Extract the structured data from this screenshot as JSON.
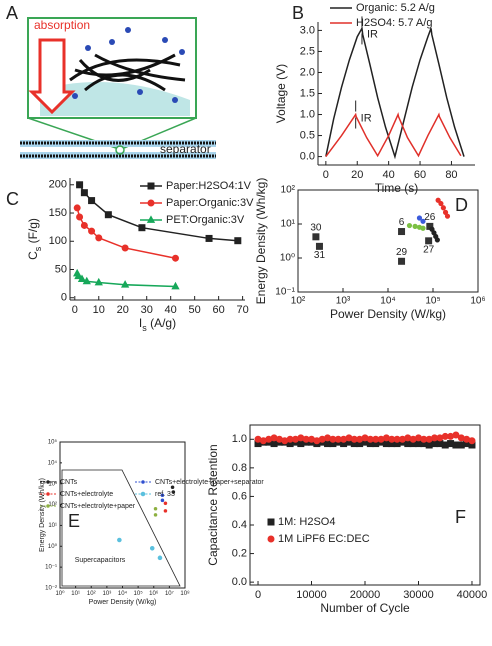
{
  "diagram": {
    "panel": "A",
    "labels": [
      "absorption",
      "separator"
    ]
  },
  "chart_data": [
    {
      "type": "line",
      "panel": "B",
      "xlabel": "Time (s)",
      "ylabel": "Voltage (V)",
      "xlim": [
        -5,
        95
      ],
      "ylim": [
        -0.2,
        3.2
      ],
      "xticks": [
        0,
        20,
        40,
        60,
        80
      ],
      "yticks": [
        {
          "value": 0,
          "label": "0.0"
        },
        0.5,
        {
          "value": 1,
          "label": "1.0"
        },
        1.5,
        {
          "value": 2,
          "label": "2.0"
        },
        2.5,
        {
          "value": 3,
          "label": "3.0"
        }
      ],
      "annotations": [
        {
          "text": "IR",
          "x": 23,
          "y": 3.0
        },
        {
          "text": "IR",
          "x": 19,
          "y": 1.0
        }
      ],
      "series": [
        {
          "name": "Organic: 5.2 A/g",
          "color": "#222222",
          "x": [
            0,
            5,
            10,
            15,
            20,
            23,
            23.5,
            28,
            33,
            38,
            44,
            50,
            55,
            60,
            65,
            67,
            67.5,
            72,
            77,
            82,
            88
          ],
          "values": [
            0,
            0.9,
            1.65,
            2.3,
            2.85,
            3.05,
            2.9,
            2.2,
            1.4,
            0.7,
            0,
            0.9,
            1.65,
            2.3,
            2.85,
            3.05,
            2.9,
            2.2,
            1.4,
            0.7,
            0
          ]
        },
        {
          "name": "H2SO4: 5.7 A/g",
          "color": "#e0302a",
          "x": [
            0,
            10,
            19,
            19.3,
            26,
            33,
            40,
            46,
            46.3,
            52,
            59,
            65,
            72,
            72.3,
            79,
            86
          ],
          "values": [
            0,
            0.5,
            1.0,
            0.95,
            0.45,
            0.02,
            0.5,
            1.0,
            0.95,
            0.45,
            0.02,
            0.5,
            1.0,
            0.95,
            0.45,
            0.02
          ]
        }
      ]
    },
    {
      "type": "line",
      "panel": "C",
      "xlabel": [
        "I",
        "s",
        " (A/g)"
      ],
      "ylabel": [
        "C",
        "s",
        " (F/g)"
      ],
      "xlim": [
        -2,
        71
      ],
      "ylim": [
        -4,
        212
      ],
      "xticks": [
        0,
        10,
        20,
        30,
        40,
        50,
        60,
        70
      ],
      "yticks": [
        0,
        50,
        100,
        150,
        200
      ],
      "series": [
        {
          "name": "Paper:H2SO4:1V",
          "color": "#222222",
          "marker": "square",
          "x": [
            2,
            4,
            7,
            14,
            28,
            56,
            68
          ],
          "values": [
            200,
            186,
            172,
            147,
            124,
            105,
            101
          ]
        },
        {
          "name": "Paper:Organic:3V",
          "color": "#e8312a",
          "marker": "circle",
          "x": [
            1,
            2,
            4,
            7,
            10,
            21,
            42
          ],
          "values": [
            159,
            143,
            128,
            118,
            106,
            88,
            70
          ]
        },
        {
          "name": "PET:Organic:3V",
          "color": "#17a85a",
          "marker": "triangle",
          "x": [
            1,
            1.5,
            3,
            5,
            10,
            21,
            42
          ],
          "values": [
            43,
            38,
            33,
            29,
            27,
            23,
            20
          ]
        }
      ]
    },
    {
      "type": "scatter",
      "panel": "D",
      "xlabel": "Power Density (W/kg)",
      "ylabel": "Energy Density (Wh/kg)",
      "xlog": true,
      "ylog": true,
      "xlim": [
        100,
        1000000
      ],
      "ylim": [
        0.1,
        100
      ],
      "xticks": [
        {
          "value": 100,
          "label": "10²"
        },
        {
          "value": 1000,
          "label": "10³"
        },
        {
          "value": 10000,
          "label": "10⁴"
        },
        {
          "value": 100000,
          "label": "10⁵"
        },
        {
          "value": 1000000,
          "label": "10⁶"
        }
      ],
      "yticks": [
        {
          "value": 0.1,
          "label": "10⁻¹"
        },
        {
          "value": 1,
          "label": "10⁰"
        },
        {
          "value": 10,
          "label": "10¹"
        },
        {
          "value": 100,
          "label": "10²"
        }
      ],
      "series": [
        {
          "color": "#333333",
          "marker": "square",
          "x": [
            250,
            300,
            20000,
            20000,
            85000,
            80000
          ],
          "values": [
            4.2,
            2.2,
            6,
            0.8,
            8.5,
            3.2
          ],
          "point_labels": [
            "30",
            "31",
            "6",
            "29",
            "26",
            "27"
          ]
        },
        {
          "color": "#222222",
          "marker": "dot",
          "x": [
            95000,
            105000,
            115000,
            125000
          ],
          "values": [
            7,
            5.5,
            4.3,
            3.4
          ]
        },
        {
          "color": "#e8312a",
          "marker": "dot",
          "x": [
            130000,
            150000,
            170000,
            190000,
            210000
          ],
          "values": [
            50,
            40,
            30,
            22,
            17
          ]
        },
        {
          "color": "#3b5bdb",
          "marker": "dot",
          "x": [
            50000,
            60000
          ],
          "values": [
            15,
            12
          ]
        },
        {
          "color": "#7bc043",
          "marker": "dot",
          "x": [
            30000,
            40000,
            50000,
            60000
          ],
          "values": [
            9,
            8.5,
            8,
            7.5
          ]
        }
      ]
    },
    {
      "type": "scatter",
      "panel": "E",
      "xlabel": "Power Density (W/kg)",
      "ylabel": "Energy Density (Wh/kg)",
      "annotation": "Supercapacitors",
      "xlog": true,
      "ylog": true,
      "xlim": [
        1,
        100000000
      ],
      "ylim": [
        0.01,
        100000
      ],
      "xticks": [
        {
          "value": 1,
          "label": "10⁰"
        },
        {
          "value": 10,
          "label": "10¹"
        },
        {
          "value": 100,
          "label": "10²"
        },
        {
          "value": 1000,
          "label": "10³"
        },
        {
          "value": 10000,
          "label": "10⁴"
        },
        {
          "value": 100000,
          "label": "10⁵"
        },
        {
          "value": 1000000,
          "label": "10⁶"
        },
        {
          "value": 10000000,
          "label": "10⁷"
        },
        {
          "value": 100000000,
          "label": "10⁸"
        }
      ],
      "yticks": [
        {
          "value": 0.01,
          "label": "10⁻²"
        },
        {
          "value": 0.1,
          "label": "10⁻¹"
        },
        {
          "value": 1,
          "label": "10⁰"
        },
        {
          "value": 10,
          "label": "10¹"
        },
        {
          "value": 100,
          "label": "10²"
        },
        {
          "value": 1000,
          "label": "10³"
        },
        {
          "value": 10000,
          "label": "10⁴"
        },
        {
          "value": 100000,
          "label": "10⁵"
        }
      ],
      "series": [
        {
          "name": "CNTs",
          "color": "#222222",
          "marker": "dot",
          "x": [
            16000000,
            18000000
          ],
          "values": [
            680,
            400
          ]
        },
        {
          "name": "CNTs+electrolyte+paper+separator",
          "color": "#3050d0",
          "marker": "dot",
          "x": [
            3600000,
            3600000
          ],
          "values": [
            280,
            160
          ]
        },
        {
          "name": "CNTs+electrolyte",
          "color": "#e8312a",
          "marker": "dot",
          "x": [
            5600000,
            5600000
          ],
          "values": [
            115,
            50
          ]
        },
        {
          "name": "ref. 33",
          "color": "#5bc0de",
          "marker": "circle",
          "x": [
            6300,
            800000,
            2500000
          ],
          "values": [
            2,
            0.8,
            0.28
          ]
        },
        {
          "name": "CNTs+electrolyte+paper",
          "color": "#8db040",
          "marker": "dot",
          "x": [
            1300000,
            1300000
          ],
          "values": [
            63,
            32
          ]
        }
      ]
    },
    {
      "type": "scatter",
      "panel": "F",
      "xlabel": "Number of Cycle",
      "ylabel": "Capacitance Retention",
      "xlim": [
        -1500,
        41500
      ],
      "ylim": [
        -0.02,
        1.1
      ],
      "xticks": [
        0,
        10000,
        20000,
        30000,
        40000
      ],
      "yticks": [
        {
          "value": 0,
          "label": "0.0"
        },
        0.2,
        0.4,
        0.6,
        0.8,
        {
          "value": 1,
          "label": "1.0"
        }
      ],
      "x": [
        0,
        1000,
        2000,
        3000,
        4000,
        5000,
        6000,
        7000,
        8000,
        9000,
        10000,
        11000,
        12000,
        13000,
        14000,
        15000,
        16000,
        17000,
        18000,
        19000,
        20000,
        21000,
        22000,
        23000,
        24000,
        25000,
        26000,
        27000,
        28000,
        29000,
        30000,
        31000,
        32000,
        33000,
        34000,
        35000,
        36000,
        37000,
        38000,
        39000,
        40000
      ],
      "series": [
        {
          "name": "1M: H2SO4",
          "color": "#222222",
          "marker": "square",
          "values": [
            0.97,
            0.98,
            0.98,
            0.97,
            0.98,
            0.98,
            0.97,
            0.98,
            0.97,
            0.98,
            0.98,
            0.97,
            0.98,
            0.97,
            0.97,
            0.98,
            0.97,
            0.98,
            0.97,
            0.97,
            0.98,
            0.97,
            0.97,
            0.98,
            0.97,
            0.97,
            0.97,
            0.98,
            0.97,
            0.97,
            0.97,
            0.97,
            0.96,
            0.97,
            0.97,
            0.96,
            0.97,
            0.96,
            0.96,
            0.97,
            0.96
          ]
        },
        {
          "name": "1M LiPF6 EC:DEC",
          "color": "#e8312a",
          "marker": "circle",
          "values": [
            1.0,
            0.99,
            1.0,
            1.01,
            1.0,
            0.99,
            1.0,
            1.0,
            1.01,
            1.0,
            1.0,
            0.99,
            1.0,
            1.01,
            1.0,
            1.0,
            1.0,
            1.01,
            1.0,
            1.0,
            1.01,
            1.0,
            1.0,
            1.0,
            1.01,
            1.0,
            1.0,
            1.0,
            1.01,
            1.0,
            1.01,
            1.0,
            1.0,
            1.01,
            1.01,
            1.02,
            1.02,
            1.03,
            1.01,
            1.0,
            0.99
          ]
        }
      ]
    }
  ]
}
